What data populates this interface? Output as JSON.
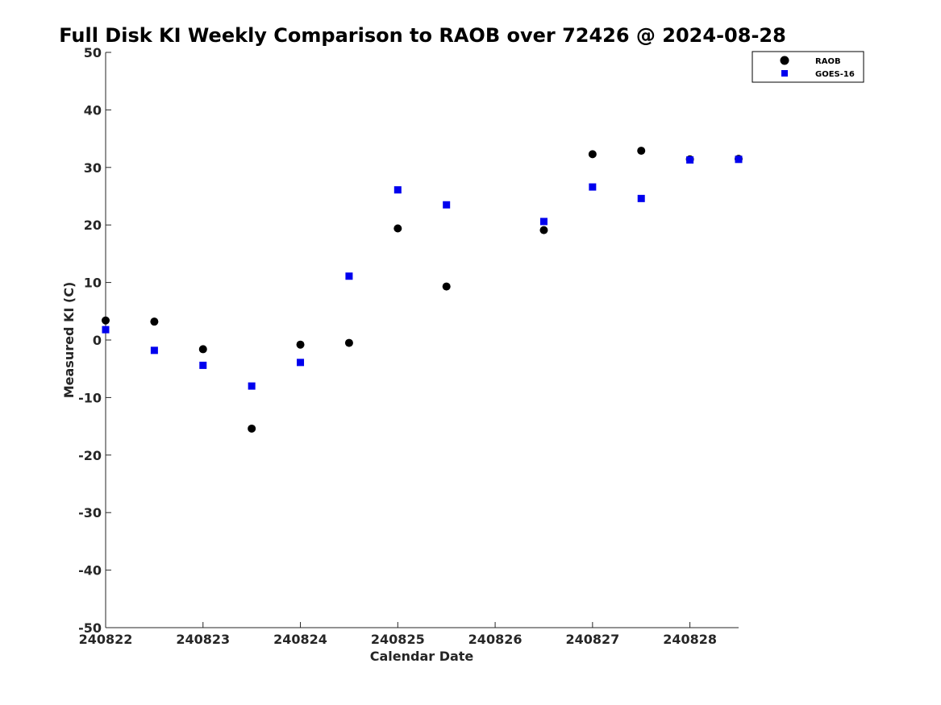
{
  "chart_data": {
    "type": "scatter",
    "title": "Full Disk KI Weekly Comparison to RAOB over 72426 @ 2024-08-28",
    "xlabel": "Calendar Date",
    "ylabel": "Measured KI (C)",
    "xlim": [
      240822,
      240828.5
    ],
    "ylim": [
      -50,
      50
    ],
    "x_ticks": [
      240822,
      240823,
      240824,
      240825,
      240826,
      240827,
      240828
    ],
    "x_tick_labels": [
      "240822",
      "240823",
      "240824",
      "240825",
      "240826",
      "240827",
      "240828"
    ],
    "y_ticks": [
      -50,
      -40,
      -30,
      -20,
      -10,
      0,
      10,
      20,
      30,
      40,
      50
    ],
    "y_tick_labels": [
      "-50",
      "-40",
      "-30",
      "-20",
      "-10",
      "0",
      "10",
      "20",
      "30",
      "40",
      "50"
    ],
    "grid": false,
    "legend_position": "top-right",
    "series": [
      {
        "name": "RAOB",
        "marker": "circle",
        "color": "#000000",
        "x": [
          240822,
          240822.5,
          240823,
          240823.5,
          240824,
          240824.5,
          240825,
          240825.5,
          240826.5,
          240827,
          240827.5,
          240828,
          240828.5
        ],
        "y": [
          3.4,
          3.2,
          -1.6,
          -15.4,
          -0.8,
          -0.5,
          19.4,
          9.3,
          19.1,
          32.3,
          32.9,
          31.4,
          31.5
        ]
      },
      {
        "name": "GOES-16",
        "marker": "square",
        "color": "#0000ee",
        "x": [
          240822,
          240822.5,
          240823,
          240823.5,
          240824,
          240824.5,
          240825,
          240825.5,
          240826.5,
          240827,
          240827.5,
          240828,
          240828.5
        ],
        "y": [
          1.8,
          -1.8,
          -4.4,
          -8.0,
          -3.9,
          11.1,
          26.1,
          23.5,
          20.6,
          26.6,
          24.6,
          31.3,
          31.4
        ]
      }
    ]
  }
}
